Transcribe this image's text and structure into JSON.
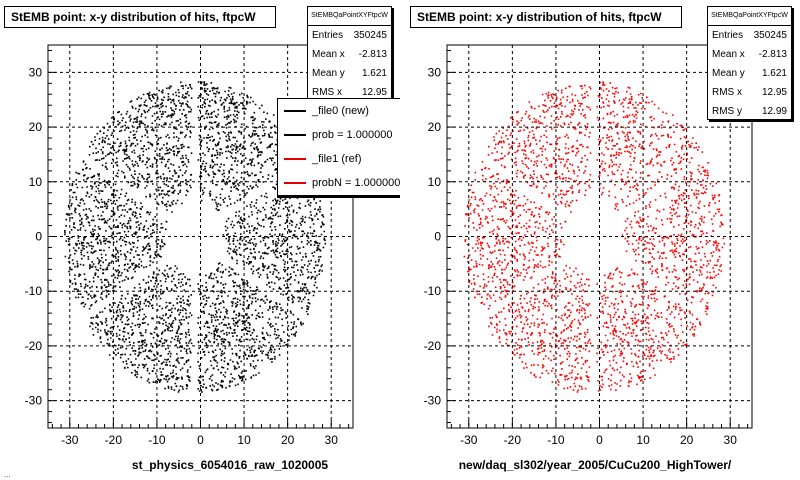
{
  "left_panel": {
    "title": "StEMB point: x-y distribution of hits, ftpcW",
    "x_caption": "st_physics_6054016_raw_1020005",
    "stats": {
      "name": "StEMBQaPointXYFtpcW",
      "rows": [
        {
          "label": "Entries",
          "value": "350245"
        },
        {
          "label": "Mean x",
          "value": "-2.813"
        },
        {
          "label": "Mean y",
          "value": "1.621"
        },
        {
          "label": "RMS x",
          "value": "12.95"
        }
      ]
    },
    "legend": [
      {
        "label": "_file0 (new)",
        "color": "#000000"
      },
      {
        "label": "prob = 1.000000",
        "color": "#000000"
      },
      {
        "label": "_file1 (ref)",
        "color": "#e00000"
      },
      {
        "label": "probN = 1.000000",
        "color": "#e00000"
      }
    ]
  },
  "right_panel": {
    "title": "StEMB point: x-y distribution of hits, ftpcW",
    "x_caption": "new/daq_sl302/year_2005/CuCu200_HighTower/",
    "stats": {
      "name": "StEMBQaPointXYFtpcW",
      "rows": [
        {
          "label": "Entries",
          "value": "350245"
        },
        {
          "label": "Mean x",
          "value": "-2.813"
        },
        {
          "label": "Mean y",
          "value": "1.621"
        },
        {
          "label": "RMS x",
          "value": "12.95"
        },
        {
          "label": "RMS y",
          "value": "12.99"
        }
      ]
    }
  },
  "footer_note": "...",
  "chart_data": [
    {
      "type": "scatter",
      "title": "StEMB point: x-y distribution of hits, ftpcW",
      "xlabel": "st_physics_6054016_raw_1020005",
      "ylabel": "",
      "xlim": [
        -35,
        35
      ],
      "ylim": [
        -35,
        35
      ],
      "xticks": [
        -30,
        -20,
        -10,
        0,
        10,
        20,
        30
      ],
      "yticks": [
        -30,
        -20,
        -10,
        0,
        10,
        20,
        30
      ],
      "grid": true,
      "marker_color": "#000000",
      "distribution": {
        "shape": "annulus with sector gaps",
        "outer_radius_x": 30,
        "outer_radius_y": 28.5,
        "inner_radius": 6.5,
        "gap_angles_deg": [
          90,
          150,
          210,
          270,
          330,
          30
        ]
      }
    },
    {
      "type": "scatter",
      "title": "StEMB point: x-y distribution of hits, ftpcW",
      "xlabel": "new/daq_sl302/year_2005/CuCu200_HighTower/",
      "ylabel": "",
      "xlim": [
        -35,
        35
      ],
      "ylim": [
        -35,
        35
      ],
      "xticks": [
        -30,
        -20,
        -10,
        0,
        10,
        20,
        30
      ],
      "yticks": [
        -30,
        -20,
        -10,
        0,
        10,
        20,
        30
      ],
      "grid": true,
      "marker_color": "#ff0000",
      "distribution": {
        "shape": "annulus with sector gaps",
        "outer_radius_x": 30,
        "outer_radius_y": 28.5,
        "inner_radius": 6.5,
        "gap_angles_deg": [
          90,
          150,
          210,
          270,
          330,
          30
        ]
      }
    }
  ]
}
